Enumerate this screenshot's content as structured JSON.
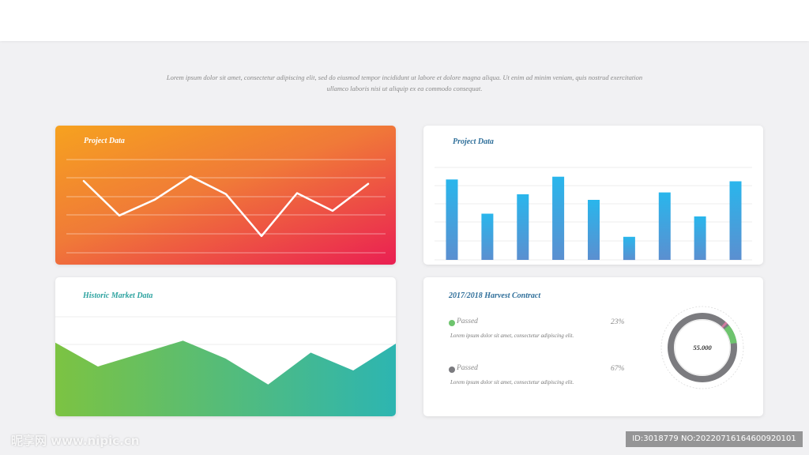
{
  "intro_text": "Lorem ipsum dolor sit amet, consectetur adipiscing elit, sed do eiusmod tempor incididunt ut labore et dolore magna aliqua. Ut enim ad minim veniam, quis nostrud exercitation ullamco laboris nisi ut aliquip ex ea commodo consequat.",
  "colors": {
    "line_gradient": [
      "#f6a21f",
      "#ea1f52"
    ],
    "bar_gradient": [
      "#29b6ec",
      "#5b8fd0"
    ],
    "area_gradient": [
      "#7cc342",
      "#2db5b1"
    ],
    "donut_passed_green": "#6ec46e",
    "donut_passed_gray": "#7b7b7f"
  },
  "cards": {
    "line": {
      "title": "Project Data"
    },
    "bar": {
      "title": "Project Data"
    },
    "area": {
      "title": "Historic Market Data"
    },
    "donut": {
      "title": "2017/2018 Harvest Contract",
      "center_label": "55.000",
      "legend": [
        {
          "label": "Passed",
          "percent": "23%",
          "color": "#6ec46e",
          "description": "Lorem ipsum dolor sit amet, consectetur adipiscing elit."
        },
        {
          "label": "Passed",
          "percent": "67%",
          "color": "#7b7b7f",
          "description": "Lorem ipsum dolor sit amet, consectetur adipiscing elit."
        }
      ]
    }
  },
  "chart_data": [
    {
      "type": "line",
      "title": "Project Data",
      "values": [
        77,
        40,
        57,
        82,
        63,
        18,
        64,
        45,
        74
      ],
      "ylim": [
        0,
        100
      ],
      "grid": true
    },
    {
      "type": "bar",
      "title": "Project Data",
      "values": [
        87,
        50,
        71,
        90,
        65,
        25,
        73,
        47,
        85
      ],
      "ylim": [
        0,
        100
      ],
      "grid": true
    },
    {
      "type": "area",
      "title": "Historic Market Data",
      "values": [
        74,
        50,
        63,
        76,
        58,
        32,
        64,
        46,
        73
      ],
      "ylim": [
        0,
        100
      ],
      "grid": true
    },
    {
      "type": "pie",
      "title": "2017/2018 Harvest Contract",
      "labels": [
        "Passed",
        "Passed"
      ],
      "values": [
        23,
        67
      ],
      "center_label": "55.000"
    }
  ],
  "watermark": {
    "site": "昵享网 www.nipic.cn",
    "id_text": "ID:3018779 NO:20220716164600920101"
  }
}
